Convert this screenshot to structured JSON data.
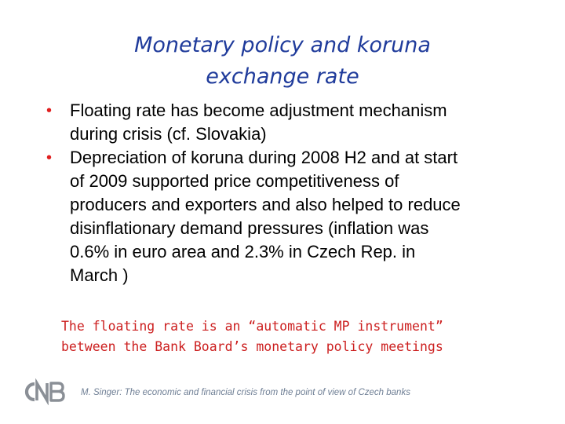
{
  "slide": {
    "title_line1": "Monetary policy and koruna",
    "title_line2": "exchange rate",
    "bullets": [
      {
        "lines": [
          "Floating rate has become adjustment mechanism",
          "during crisis (cf. Slovakia)"
        ]
      },
      {
        "lines": [
          "Depreciation of koruna during 2008 H2 and at start",
          "of 2009 supported price competitiveness of",
          "producers and exporters and also helped to reduce",
          "disinflationary demand pressures (inflation was",
          "0.6% in euro area and 2.3% in Czech Rep. in",
          "March )"
        ]
      }
    ],
    "bullet_glyph": "•",
    "note_line1": "The floating rate is an “automatic MP instrument”",
    "note_line2": "between the Bank Board’s monetary policy meetings",
    "logo_text": "CNB",
    "footer": "M. Singer: The economic and financial crisis from the point of view of Czech banks"
  },
  "colors": {
    "title": "#1f3b9b",
    "bullet_glyph": "#e02020",
    "note": "#cc1f1f",
    "footer": "#6f7f95",
    "logo": "#8a8f96"
  }
}
